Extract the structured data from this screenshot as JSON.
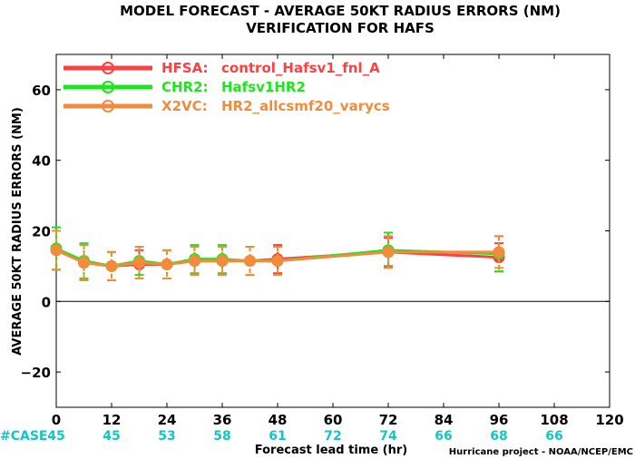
{
  "chart_data": {
    "type": "line",
    "title": "MODEL FORECAST - AVERAGE 50KT RADIUS ERRORS (NM)",
    "subtitle": "VERIFICATION FOR HAFS",
    "xlabel": "Forecast lead time (hr)",
    "ylabel": "AVERAGE 50KT RADIUS ERRORS (NM)",
    "xlim": [
      0,
      120
    ],
    "ylim": [
      -30,
      70
    ],
    "xticks": [
      0,
      12,
      24,
      36,
      48,
      60,
      72,
      84,
      96,
      108,
      120
    ],
    "yticks": [
      -20,
      0,
      20,
      40,
      60
    ],
    "zero_line": true,
    "legend_position": "top-left",
    "case_label": "#CASE",
    "cases": [
      {
        "x": 0,
        "n": "45"
      },
      {
        "x": 12,
        "n": "45"
      },
      {
        "x": 24,
        "n": "53"
      },
      {
        "x": 36,
        "n": "58"
      },
      {
        "x": 48,
        "n": "61"
      },
      {
        "x": 60,
        "n": "72"
      },
      {
        "x": 72,
        "n": "74"
      },
      {
        "x": 84,
        "n": "66"
      },
      {
        "x": 96,
        "n": "68"
      },
      {
        "x": 108,
        "n": "66"
      }
    ],
    "credit": "Hurricane project - NOAA/NCEP/EMC",
    "series": [
      {
        "name": "HFSA:",
        "label": "control_Hafsv1_fnl_A",
        "color": "#ff4040",
        "x": [
          0,
          6,
          12,
          18,
          24,
          30,
          36,
          42,
          48,
          72,
          96
        ],
        "y": [
          15,
          11,
          10,
          10.5,
          10.5,
          11.5,
          11.5,
          11.5,
          12,
          14,
          12.5
        ],
        "err": [
          6,
          5,
          4,
          4,
          4,
          4,
          4,
          4,
          4,
          4,
          4
        ]
      },
      {
        "name": "CHR2:",
        "label": "Hafsv1HR2",
        "color": "#1ee51e",
        "x": [
          0,
          6,
          12,
          18,
          24,
          30,
          36,
          42,
          48,
          72,
          96
        ],
        "y": [
          15,
          11.5,
          10,
          11.5,
          10.5,
          12,
          12,
          11.5,
          11.5,
          14.5,
          13.5
        ],
        "err": [
          6,
          5,
          4,
          4,
          4,
          4,
          4,
          4,
          4,
          5,
          5
        ]
      },
      {
        "name": "X2VC:",
        "label": "HR2_allcsmf20_varycs",
        "color": "#f28c3c",
        "x": [
          0,
          6,
          12,
          18,
          24,
          30,
          36,
          42,
          48,
          72,
          96
        ],
        "y": [
          14.5,
          11,
          10,
          11,
          10.5,
          11.5,
          11.5,
          11.5,
          11.5,
          14,
          14
        ],
        "err": [
          5.5,
          5,
          4,
          4.5,
          4,
          4,
          4,
          4,
          4,
          4.5,
          4.5
        ]
      }
    ]
  }
}
